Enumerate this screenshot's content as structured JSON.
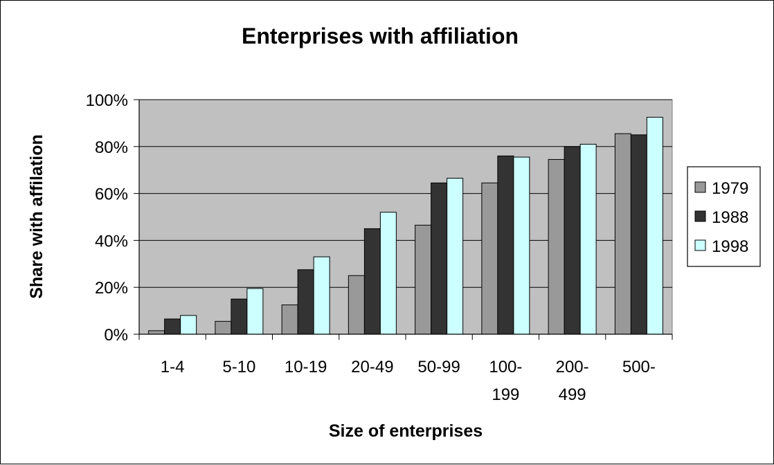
{
  "chart_data": {
    "type": "bar",
    "title": "Enterprises with affiliation",
    "xlabel": "Size of enterprises",
    "ylabel": "Share with affilation",
    "categories": [
      [
        "1-4"
      ],
      [
        "5-10"
      ],
      [
        "10-19"
      ],
      [
        "20-49"
      ],
      [
        "50-99"
      ],
      [
        "100-",
        "199"
      ],
      [
        "200-",
        "499"
      ],
      [
        "500-"
      ]
    ],
    "series": [
      {
        "name": "1979",
        "color": "#999999",
        "values": [
          1.5,
          5.5,
          12.5,
          25,
          46.5,
          64.5,
          74.5,
          85.5
        ]
      },
      {
        "name": "1988",
        "color": "#333333",
        "values": [
          6.5,
          15,
          27.5,
          45,
          64.5,
          76,
          80,
          85
        ]
      },
      {
        "name": "1998",
        "color": "#ccffff",
        "values": [
          8,
          19.5,
          33,
          52,
          66.5,
          75.5,
          81,
          92.5
        ]
      }
    ],
    "ylim": [
      0,
      100
    ],
    "yticks": [
      "0%",
      "20%",
      "40%",
      "60%",
      "80%",
      "100%"
    ],
    "grid": true,
    "plot_background": "#c0c0c0",
    "legend": "right"
  }
}
